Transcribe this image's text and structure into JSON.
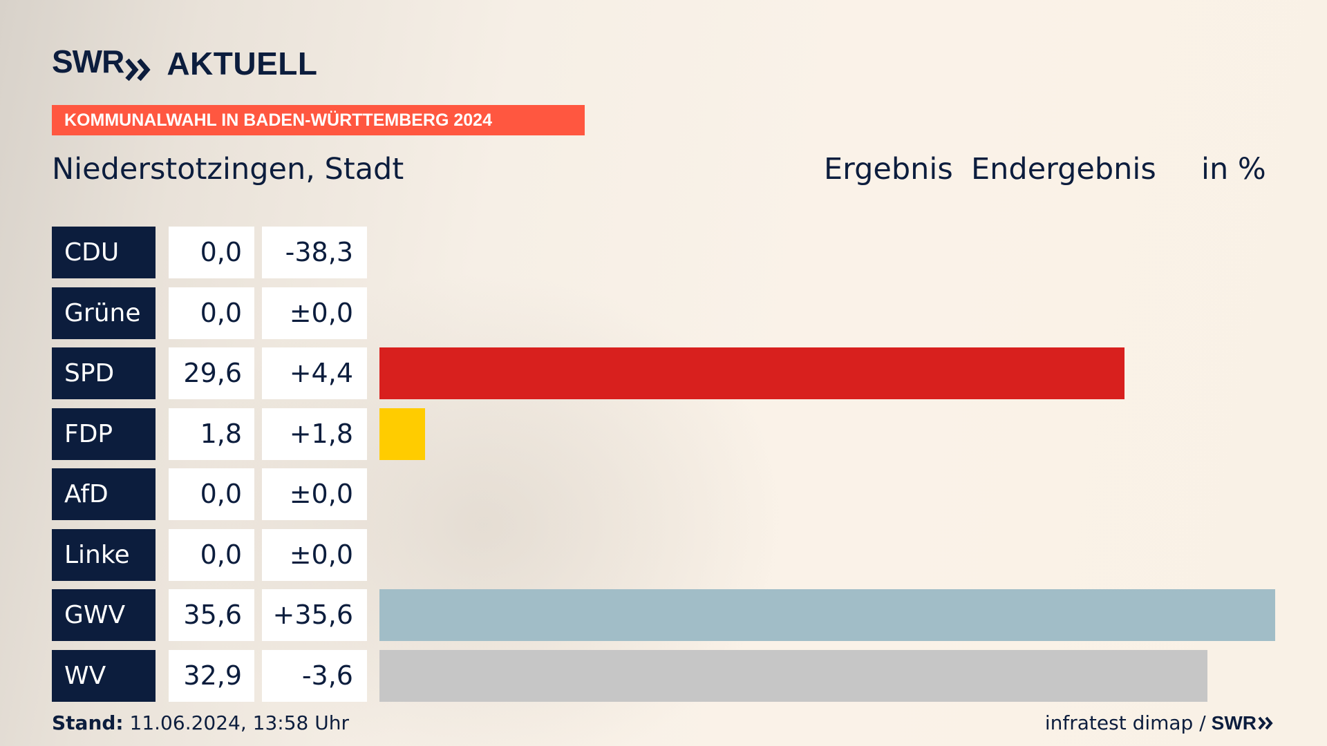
{
  "logo": {
    "brand": "SWR",
    "section": "AKTUELL"
  },
  "banner": "KOMMUNALWAHL IN BADEN-WÜRTTEMBERG 2024",
  "place": "Niederstotzingen, Stadt",
  "headers": {
    "result": "Ergebnis",
    "final": "Endergebnis",
    "unit": "in %"
  },
  "chart_data": {
    "type": "bar",
    "orientation": "horizontal",
    "title": "Niederstotzingen, Stadt",
    "unit": "%",
    "xlim": [
      0,
      35.6
    ],
    "categories": [
      "CDU",
      "Grüne",
      "SPD",
      "FDP",
      "AfD",
      "Linke",
      "GWV",
      "WV"
    ],
    "values": [
      0.0,
      0.0,
      29.6,
      1.8,
      0.0,
      0.0,
      35.6,
      32.9
    ],
    "value_labels": [
      "0,0",
      "0,0",
      "29,6",
      "1,8",
      "0,0",
      "0,0",
      "35,6",
      "32,9"
    ],
    "changes": [
      -38.3,
      0.0,
      4.4,
      1.8,
      0.0,
      0.0,
      35.6,
      -3.6
    ],
    "change_labels": [
      "-38,3",
      "±0,0",
      "+4,4",
      "+1,8",
      "±0,0",
      "±0,0",
      "+35,6",
      "-3,6"
    ],
    "colors": [
      "#000000",
      "#46962b",
      "#d8201e",
      "#ffcc00",
      "#009ee0",
      "#be3075",
      "#a1bdc7",
      "#c6c6c6"
    ]
  },
  "footer": {
    "stand_label": "Stand:",
    "stand_value": "11.06.2024, 13:58 Uhr",
    "source": "infratest dimap /",
    "source_brand": "SWR"
  },
  "icons": {
    "logo_chevrons": "double-chevron-right-icon"
  }
}
